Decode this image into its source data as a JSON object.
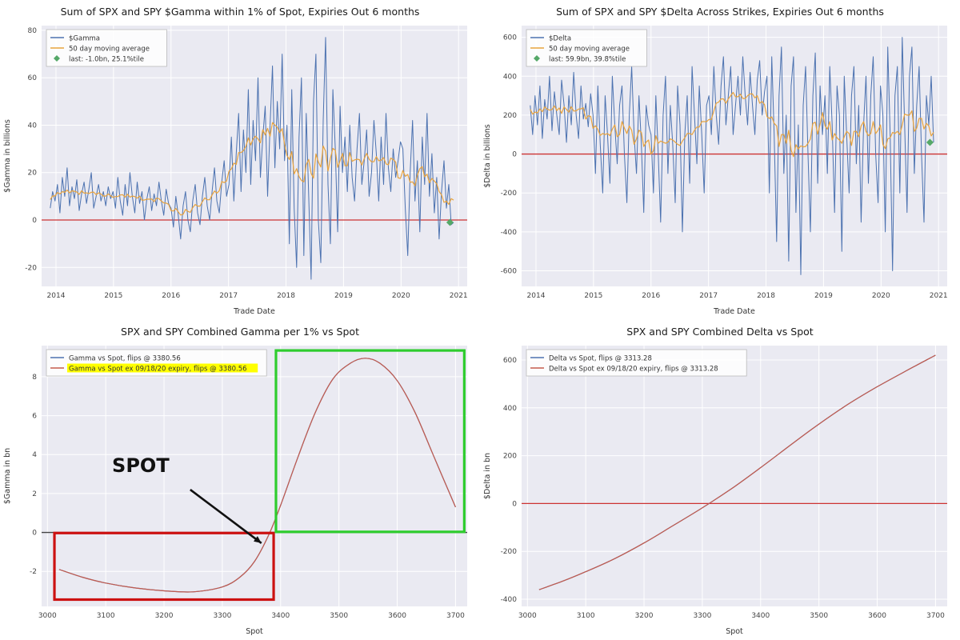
{
  "colors": {
    "axes_bg": "#eaeaf2",
    "grid": "#ffffff",
    "blue": "#4c72b0",
    "orange": "#e8a33d",
    "curve_red": "#c45b4d",
    "zero_red": "#cc3333",
    "zero_dark": "#444444",
    "green_marker": "#55a868",
    "rect_red": "#cc1111",
    "rect_green": "#2ecc2e",
    "highlight_yellow": "#ffff00",
    "tick_text": "#444444",
    "axis_text": "#333333"
  },
  "chart_data": [
    {
      "type": "line",
      "title": "Sum of SPX and SPY $Gamma within 1% of Spot, Expiries Out 6 months",
      "xlabel": "Trade Date",
      "ylabel": "$Gamma in billions",
      "xlim": [
        2013.75,
        2021.15
      ],
      "ylim": [
        -28,
        82
      ],
      "xticks": [
        2014,
        2015,
        2016,
        2017,
        2018,
        2019,
        2020,
        2021
      ],
      "yticks": [
        -20,
        0,
        20,
        40,
        60,
        80
      ],
      "hline": 0,
      "hline_color": "#cc3333",
      "series": [
        {
          "name": "$Gamma",
          "color": "#4c72b0",
          "width": 1,
          "x_start": 2013.9,
          "x_step": 0.042,
          "values": [
            5,
            12,
            8,
            15,
            3,
            18,
            10,
            22,
            6,
            14,
            9,
            17,
            4,
            11,
            16,
            7,
            13,
            20,
            5,
            10,
            15,
            8,
            12,
            6,
            14,
            9,
            12,
            5,
            18,
            8,
            2,
            15,
            6,
            20,
            10,
            3,
            16,
            7,
            12,
            0,
            9,
            14,
            4,
            11,
            6,
            16,
            8,
            2,
            13,
            7,
            5,
            -3,
            10,
            2,
            -8,
            6,
            12,
            0,
            -5,
            8,
            15,
            3,
            -2,
            10,
            18,
            6,
            0,
            12,
            22,
            8,
            3,
            16,
            25,
            10,
            15,
            35,
            8,
            28,
            45,
            12,
            38,
            20,
            55,
            15,
            42,
            25,
            60,
            18,
            35,
            48,
            10,
            40,
            65,
            22,
            50,
            30,
            70,
            25,
            40,
            -10,
            55,
            5,
            -20,
            35,
            60,
            -15,
            45,
            10,
            -25,
            50,
            70,
            0,
            -18,
            42,
            77,
            15,
            -10,
            55,
            30,
            -5,
            48,
            20,
            35,
            12,
            40,
            18,
            8,
            30,
            45,
            15,
            25,
            38,
            10,
            20,
            42,
            28,
            8,
            35,
            15,
            45,
            22,
            12,
            30,
            18,
            25,
            33,
            30,
            5,
            -15,
            20,
            42,
            8,
            25,
            -5,
            35,
            15,
            45,
            10,
            28,
            3,
            18,
            -8,
            12,
            25,
            5,
            15,
            -2,
            -1
          ]
        },
        {
          "name": "50 day moving average",
          "color": "#e8a33d",
          "width": 1.2,
          "ma_of": 0,
          "window": 4
        }
      ],
      "marker": {
        "x": 2020.85,
        "y": -1.0,
        "color": "#55a868"
      },
      "legend": [
        {
          "label": "$Gamma",
          "color": "#4c72b0",
          "type": "line"
        },
        {
          "label": "50 day moving average",
          "color": "#e8a33d",
          "type": "line"
        },
        {
          "label": "last: -1.0bn, 25.1%tile",
          "color": "#55a868",
          "type": "diamond"
        }
      ]
    },
    {
      "type": "line",
      "title": "Sum of SPX and SPY $Delta Across Strikes, Expiries Out 6 months",
      "xlabel": "Trade Date",
      "ylabel": "$Delta in billions",
      "xlim": [
        2013.75,
        2021.15
      ],
      "ylim": [
        -680,
        660
      ],
      "xticks": [
        2014,
        2015,
        2016,
        2017,
        2018,
        2019,
        2020,
        2021
      ],
      "yticks": [
        -600,
        -400,
        -200,
        0,
        200,
        400,
        600
      ],
      "hline": 0,
      "hline_color": "#cc3333",
      "series": [
        {
          "name": "$Delta",
          "color": "#4c72b0",
          "width": 1,
          "x_start": 2013.9,
          "x_step": 0.042,
          "values": [
            250,
            100,
            300,
            150,
            350,
            80,
            280,
            180,
            400,
            120,
            320,
            200,
            100,
            380,
            250,
            60,
            300,
            150,
            420,
            200,
            80,
            350,
            180,
            260,
            140,
            310,
            200,
            -100,
            350,
            50,
            -200,
            300,
            100,
            -150,
            400,
            150,
            -50,
            250,
            350,
            0,
            -250,
            200,
            450,
            100,
            -100,
            300,
            50,
            -300,
            250,
            150,
            100,
            -200,
            300,
            0,
            -350,
            200,
            400,
            -100,
            250,
            50,
            -250,
            350,
            150,
            -400,
            100,
            300,
            -150,
            450,
            200,
            -50,
            350,
            100,
            -200,
            250,
            300,
            100,
            450,
            200,
            50,
            350,
            500,
            150,
            300,
            450,
            100,
            250,
            400,
            200,
            500,
            300,
            150,
            420,
            250,
            100,
            380,
            480,
            200,
            320,
            400,
            -200,
            500,
            100,
            -450,
            300,
            550,
            -100,
            200,
            -550,
            350,
            500,
            -300,
            150,
            -620,
            250,
            450,
            0,
            -400,
            300,
            520,
            -150,
            350,
            100,
            300,
            -100,
            450,
            150,
            -300,
            350,
            200,
            -500,
            400,
            100,
            -200,
            300,
            450,
            -50,
            250,
            -350,
            150,
            400,
            -150,
            300,
            500,
            0,
            -250,
            350,
            200,
            -400,
            550,
            100,
            -600,
            300,
            450,
            -200,
            600,
            150,
            -300,
            400,
            550,
            -100,
            250,
            450,
            0,
            -350,
            300,
            150,
            400,
            60
          ]
        },
        {
          "name": "50 day moving average",
          "color": "#e8a33d",
          "width": 1.2,
          "ma_of": 0,
          "window": 4
        }
      ],
      "marker": {
        "x": 2020.85,
        "y": 60,
        "color": "#55a868"
      },
      "legend": [
        {
          "label": "$Delta",
          "color": "#4c72b0",
          "type": "line"
        },
        {
          "label": "50 day moving average",
          "color": "#e8a33d",
          "type": "line"
        },
        {
          "label": "last: 59.9bn, 39.8%tile",
          "color": "#55a868",
          "type": "diamond"
        }
      ]
    },
    {
      "type": "line",
      "title": "SPX and SPY Combined Gamma per 1% vs Spot",
      "xlabel": "Spot",
      "ylabel": "$Gamma in bn",
      "xlim": [
        2990,
        3720
      ],
      "ylim": [
        -3.8,
        9.6
      ],
      "xticks": [
        3000,
        3100,
        3200,
        3300,
        3400,
        3500,
        3600,
        3700
      ],
      "yticks": [
        -2,
        0,
        2,
        4,
        6,
        8
      ],
      "hline": 0,
      "hline_color": "#444444",
      "series": [
        {
          "name": "Gamma vs Spot, flips @ 3380.56",
          "color": "#4c72b0",
          "width": 1.2,
          "smooth": true,
          "points": [
            [
              3020,
              -1.9
            ],
            [
              3060,
              -2.3
            ],
            [
              3100,
              -2.6
            ],
            [
              3150,
              -2.85
            ],
            [
              3200,
              -3.0
            ],
            [
              3250,
              -3.05
            ],
            [
              3300,
              -2.8
            ],
            [
              3330,
              -2.3
            ],
            [
              3355,
              -1.5
            ],
            [
              3380,
              -0.1
            ],
            [
              3400,
              1.4
            ],
            [
              3430,
              3.9
            ],
            [
              3460,
              6.2
            ],
            [
              3490,
              7.9
            ],
            [
              3520,
              8.7
            ],
            [
              3545,
              8.95
            ],
            [
              3570,
              8.7
            ],
            [
              3600,
              7.8
            ],
            [
              3630,
              6.2
            ],
            [
              3660,
              4.1
            ],
            [
              3680,
              2.7
            ],
            [
              3700,
              1.3
            ]
          ]
        },
        {
          "name": "Gamma vs Spot ex 09/18/20 expiry, flips @ 3380.56",
          "color": "#c45b4d",
          "width": 1.2,
          "smooth": true,
          "points": [
            [
              3020,
              -1.9
            ],
            [
              3060,
              -2.3
            ],
            [
              3100,
              -2.6
            ],
            [
              3150,
              -2.85
            ],
            [
              3200,
              -3.0
            ],
            [
              3250,
              -3.05
            ],
            [
              3300,
              -2.8
            ],
            [
              3330,
              -2.3
            ],
            [
              3355,
              -1.5
            ],
            [
              3380,
              -0.1
            ],
            [
              3400,
              1.4
            ],
            [
              3430,
              3.9
            ],
            [
              3460,
              6.2
            ],
            [
              3490,
              7.9
            ],
            [
              3520,
              8.7
            ],
            [
              3545,
              8.95
            ],
            [
              3570,
              8.7
            ],
            [
              3600,
              7.8
            ],
            [
              3630,
              6.2
            ],
            [
              3660,
              4.1
            ],
            [
              3680,
              2.7
            ],
            [
              3700,
              1.3
            ]
          ]
        }
      ],
      "rects": [
        {
          "x0": 3012,
          "x1": 3388,
          "y0": -3.45,
          "y1": -0.03,
          "color": "#cc1111"
        },
        {
          "x0": 3392,
          "x1": 3715,
          "y0": 0.03,
          "y1": 9.35,
          "color": "#2ecc2e"
        }
      ],
      "annotation": {
        "text": "SPOT",
        "text_x": 3160,
        "text_y": 3.1,
        "arrow_from": [
          3245,
          2.2
        ],
        "arrow_to": [
          3367,
          -0.55
        ],
        "font_size": 24
      },
      "legend": [
        {
          "label": "Gamma vs Spot, flips @ 3380.56",
          "color": "#4c72b0",
          "type": "line"
        },
        {
          "label": "Gamma vs Spot ex 09/18/20 expiry, flips @ 3380.56",
          "color": "#c45b4d",
          "type": "line",
          "highlight": true
        }
      ]
    },
    {
      "type": "line",
      "title": "SPX and SPY Combined Delta vs Spot",
      "xlabel": "Spot",
      "ylabel": "$Delta in bn",
      "xlim": [
        2990,
        3720
      ],
      "ylim": [
        -430,
        660
      ],
      "xticks": [
        3000,
        3100,
        3200,
        3300,
        3400,
        3500,
        3600,
        3700
      ],
      "yticks": [
        -400,
        -200,
        0,
        200,
        400,
        600
      ],
      "hline": 0,
      "hline_color": "#cc3333",
      "series": [
        {
          "name": "Delta vs Spot, flips @ 3313.28",
          "color": "#4c72b0",
          "width": 1.2,
          "smooth": true,
          "points": [
            [
              3020,
              -360
            ],
            [
              3060,
              -325
            ],
            [
              3100,
              -285
            ],
            [
              3150,
              -230
            ],
            [
              3200,
              -165
            ],
            [
              3250,
              -92
            ],
            [
              3300,
              -18
            ],
            [
              3350,
              62
            ],
            [
              3400,
              150
            ],
            [
              3450,
              242
            ],
            [
              3500,
              332
            ],
            [
              3550,
              415
            ],
            [
              3600,
              488
            ],
            [
              3650,
              555
            ],
            [
              3700,
              620
            ]
          ]
        },
        {
          "name": "Delta vs Spot ex 09/18/20 expiry, flips @ 3313.28",
          "color": "#c45b4d",
          "width": 1.2,
          "smooth": true,
          "points": [
            [
              3020,
              -360
            ],
            [
              3060,
              -325
            ],
            [
              3100,
              -285
            ],
            [
              3150,
              -230
            ],
            [
              3200,
              -165
            ],
            [
              3250,
              -92
            ],
            [
              3300,
              -18
            ],
            [
              3350,
              62
            ],
            [
              3400,
              150
            ],
            [
              3450,
              242
            ],
            [
              3500,
              332
            ],
            [
              3550,
              415
            ],
            [
              3600,
              488
            ],
            [
              3650,
              555
            ],
            [
              3700,
              620
            ]
          ]
        }
      ],
      "legend": [
        {
          "label": "Delta vs Spot, flips @ 3313.28",
          "color": "#4c72b0",
          "type": "line"
        },
        {
          "label": "Delta vs Spot ex 09/18/20 expiry, flips @ 3313.28",
          "color": "#c45b4d",
          "type": "line"
        }
      ]
    }
  ]
}
